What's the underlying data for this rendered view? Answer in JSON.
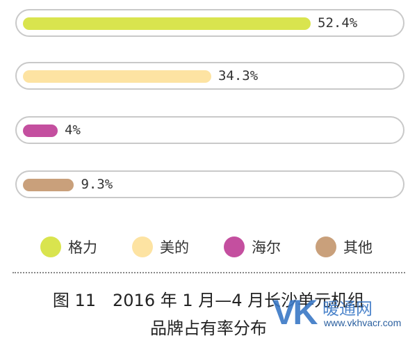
{
  "chart_data": {
    "type": "bar",
    "orientation": "horizontal",
    "categories": [
      "格力",
      "美的",
      "海尔",
      "其他"
    ],
    "values": [
      52.4,
      34.3,
      4,
      9.3
    ],
    "value_labels": [
      "52.4%",
      "34.3%",
      "4%",
      "9.3%"
    ],
    "unit": "%",
    "colors": [
      "#d9e44e",
      "#fde3a2",
      "#c44f9f",
      "#c9a07b"
    ],
    "legend_position": "bottom",
    "grid": false
  },
  "caption": {
    "line1": "图 11　2016 年 1 月—4 月长沙单元机组",
    "line2": "品牌占有率分布"
  },
  "watermark": {
    "logo": "VK",
    "text": "暖通网",
    "url": "www.vkhvacr.com"
  }
}
